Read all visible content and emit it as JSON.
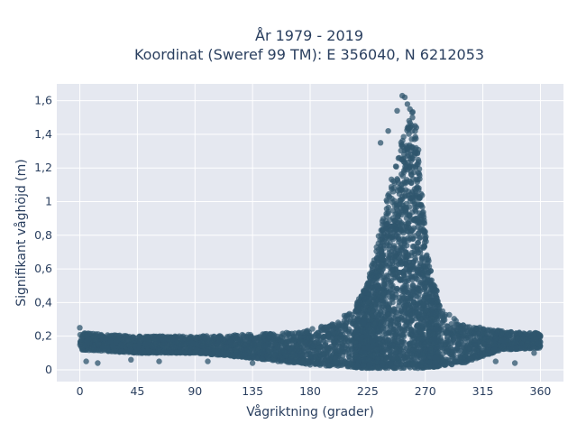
{
  "chart_data": {
    "type": "scatter",
    "title": "År 1979 - 2019",
    "subtitle": "Koordinat (Sweref 99 TM): E 356040, N 6212053",
    "xlabel": "Vågriktning (grader)",
    "ylabel": "Signifikant våghöjd (m)",
    "xlim": [
      -18,
      378
    ],
    "ylim": [
      -0.07,
      1.7
    ],
    "x_ticks": [
      0,
      45,
      90,
      135,
      180,
      225,
      270,
      315,
      360
    ],
    "x_tick_labels": [
      "0",
      "45",
      "90",
      "135",
      "180",
      "225",
      "270",
      "315",
      "360"
    ],
    "y_ticks": [
      0,
      0.2,
      0.4,
      0.6,
      0.8,
      1.0,
      1.2,
      1.4,
      1.6
    ],
    "y_tick_labels": [
      "0",
      "0,2",
      "0,4",
      "0,6",
      "0,8",
      "1",
      "1,2",
      "1,4",
      "1,6"
    ],
    "grid": true,
    "marker_color": "#2f566d",
    "plot_background": "#e5e8f0",
    "series": [
      {
        "envelope_upper": [
          [
            0,
            0.22
          ],
          [
            45,
            0.2
          ],
          [
            90,
            0.2
          ],
          [
            135,
            0.21
          ],
          [
            160,
            0.22
          ],
          [
            180,
            0.24
          ],
          [
            200,
            0.28
          ],
          [
            215,
            0.38
          ],
          [
            225,
            0.52
          ],
          [
            232,
            0.75
          ],
          [
            240,
            1.02
          ],
          [
            248,
            1.28
          ],
          [
            255,
            1.45
          ],
          [
            260,
            1.55
          ],
          [
            265,
            1.3
          ],
          [
            270,
            0.82
          ],
          [
            275,
            0.55
          ],
          [
            285,
            0.35
          ],
          [
            300,
            0.27
          ],
          [
            330,
            0.23
          ],
          [
            360,
            0.22
          ]
        ],
        "envelope_lower": [
          [
            0,
            0.12
          ],
          [
            45,
            0.1
          ],
          [
            90,
            0.1
          ],
          [
            135,
            0.07
          ],
          [
            180,
            0.03
          ],
          [
            225,
            0.01
          ],
          [
            270,
            0.01
          ],
          [
            300,
            0.04
          ],
          [
            330,
            0.12
          ],
          [
            360,
            0.13
          ]
        ],
        "sample_points": [
          [
            0,
            0.25
          ],
          [
            5,
            0.05
          ],
          [
            14,
            0.04
          ],
          [
            40,
            0.06
          ],
          [
            62,
            0.05
          ],
          [
            100,
            0.05
          ],
          [
            135,
            0.04
          ],
          [
            155,
            0.05
          ],
          [
            180,
            0.03
          ],
          [
            235,
            1.35
          ],
          [
            241,
            1.42
          ],
          [
            248,
            1.54
          ],
          [
            252,
            1.63
          ],
          [
            254,
            1.62
          ],
          [
            256,
            1.58
          ],
          [
            258,
            1.55
          ],
          [
            260,
            1.5
          ],
          [
            262,
            1.45
          ],
          [
            263,
            1.44
          ],
          [
            325,
            0.05
          ],
          [
            340,
            0.04
          ],
          [
            355,
            0.1
          ],
          [
            360,
            0.2
          ]
        ]
      }
    ]
  }
}
